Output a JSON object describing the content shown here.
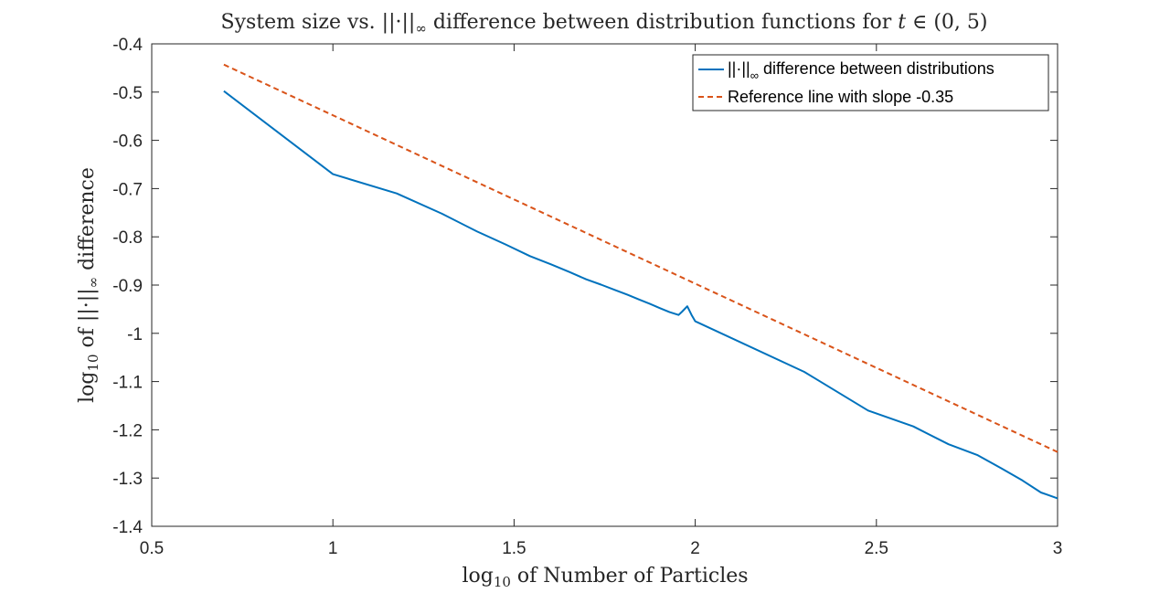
{
  "chart_data": {
    "type": "line",
    "title": {
      "prefix": "System size vs.",
      "norm_sub": "∞",
      "middle": " difference between distribution functions for ",
      "var": "t",
      "set": " ∈ (0, 5)"
    },
    "xlabel": {
      "log_sub": "10",
      "text": " of Number of Particles"
    },
    "ylabel": {
      "log_sub": "10",
      "of": " of ",
      "norm_sub": "∞",
      "tail": " difference"
    },
    "xlim": [
      0.5,
      3
    ],
    "ylim": [
      -1.4,
      -0.4
    ],
    "xticks": [
      0.5,
      1,
      1.5,
      2,
      2.5,
      3
    ],
    "yticks": [
      -1.4,
      -1.3,
      -1.2,
      -1.1,
      -1,
      -0.9,
      -0.8,
      -0.7,
      -0.6,
      -0.5,
      -0.4
    ],
    "xtick_labels": [
      "0.5",
      "1",
      "1.5",
      "2",
      "2.5",
      "3"
    ],
    "ytick_labels": [
      "-1.4",
      "-1.3",
      "-1.2",
      "-1.1",
      "-1",
      "-0.9",
      "-0.8",
      "-0.7",
      "-0.6",
      "-0.5",
      "-0.4"
    ],
    "legend_position": "top-right",
    "grid": false,
    "series": [
      {
        "name": "||·||∞ difference between distributions",
        "legend_prefix": "||·||",
        "legend_sub": "∞",
        "legend_suffix": " difference between distributions",
        "style": "solid",
        "color": "#0072BD",
        "x": [
          0.699,
          1.0,
          1.176,
          1.301,
          1.398,
          1.477,
          1.544,
          1.602,
          1.653,
          1.699,
          1.74,
          1.778,
          1.813,
          1.845,
          1.875,
          1.903,
          1.929,
          1.954,
          1.964,
          1.978,
          1.99,
          2.0,
          2.301,
          2.477,
          2.602,
          2.699,
          2.778,
          2.845,
          2.903,
          2.954,
          3.0
        ],
        "y": [
          -0.498,
          -0.67,
          -0.71,
          -0.752,
          -0.789,
          -0.816,
          -0.84,
          -0.857,
          -0.873,
          -0.888,
          -0.899,
          -0.91,
          -0.92,
          -0.93,
          -0.939,
          -0.948,
          -0.956,
          -0.962,
          -0.955,
          -0.944,
          -0.962,
          -0.975,
          -1.08,
          -1.16,
          -1.193,
          -1.23,
          -1.252,
          -1.28,
          -1.305,
          -1.33,
          -1.342
        ]
      },
      {
        "name": "Reference line with slope -0.35",
        "style": "dashed",
        "color": "#D95319",
        "x": [
          0.699,
          3.0
        ],
        "y": [
          -0.443,
          -1.246
        ]
      }
    ]
  }
}
